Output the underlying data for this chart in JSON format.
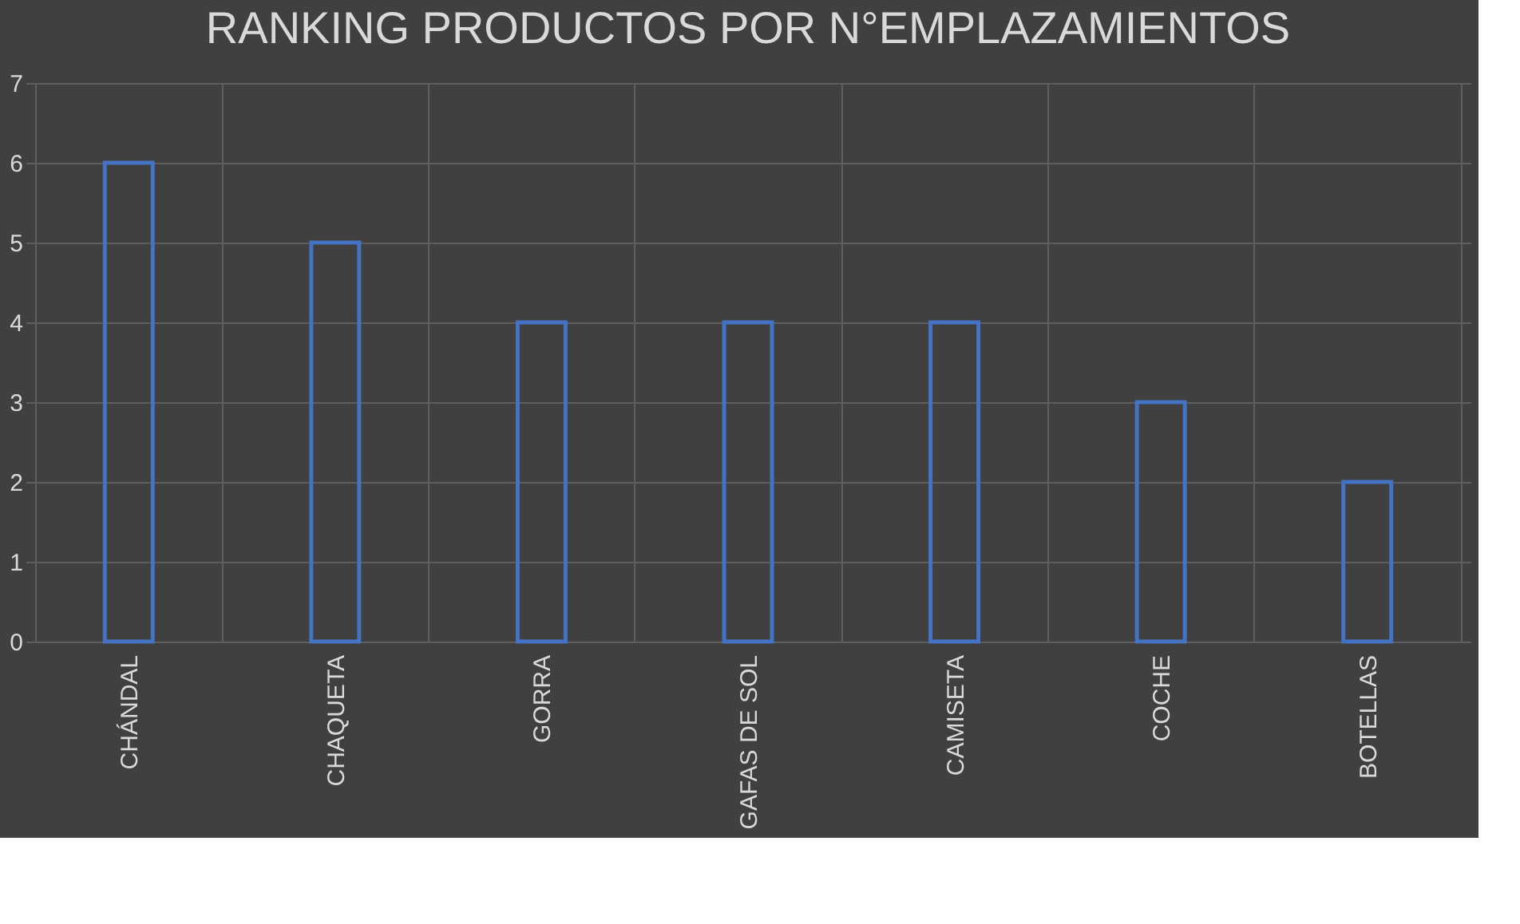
{
  "chart_data": {
    "type": "bar",
    "title": "RANKING PRODUCTOS POR N°EMPLAZAMIENTOS",
    "categories": [
      "CHÁNDAL",
      "CHAQUETA",
      "GORRA",
      "GAFAS DE SOL",
      "CAMISETA",
      "COCHE",
      "BOTELLAS"
    ],
    "values": [
      6,
      5,
      4,
      4,
      4,
      3,
      2
    ],
    "color": "#4472c4",
    "ylim": [
      0,
      7
    ],
    "yticks": [
      0,
      1,
      2,
      3,
      4,
      5,
      6,
      7
    ],
    "grid": true
  }
}
